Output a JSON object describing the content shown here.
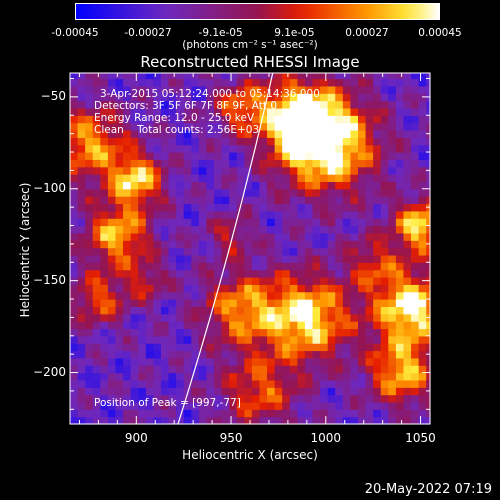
{
  "colorbar": {
    "ticks": [
      "-0.00045",
      "-0.00027",
      "-9.1e-05",
      "9.1e-05",
      "0.00027",
      "0.00045"
    ],
    "tick_values": [
      -0.00045,
      -0.00027,
      -9.1e-05,
      9.1e-05,
      0.00027,
      0.00045
    ],
    "unit_label": "(photons cm⁻² s⁻¹ asec⁻²)"
  },
  "chart_data": {
    "type": "heatmap",
    "title": "Reconstructed RHESSI Image",
    "xlabel": "Heliocentric X (arcsec)",
    "ylabel": "Heliocentric Y (arcsec)",
    "xlim": [
      865,
      1055
    ],
    "ylim": [
      -228,
      -37
    ],
    "xticks": [
      900,
      950,
      1000,
      1050
    ],
    "yticks": [
      -50,
      -100,
      -150,
      -200
    ],
    "limb_x_at_ylim": [
      922,
      972
    ],
    "peak": [
      997,
      -77
    ],
    "value_range": [
      -0.00045,
      0.00045
    ],
    "annotations": {
      "time": "3-Apr-2015 05:12:24.000 to 05:14:36.000",
      "detectors": "Detectors: 3F 5F 6F 7F 8F 9F, Att 0",
      "energy": "Energy Range: 12.0 - 25.0 keV",
      "clean": "Clean    Total counts: 2.56E+03",
      "peak_label": "Position of Peak = [997,-77]"
    }
  },
  "footer": {
    "timestamp": "20-May-2022 07:19"
  }
}
